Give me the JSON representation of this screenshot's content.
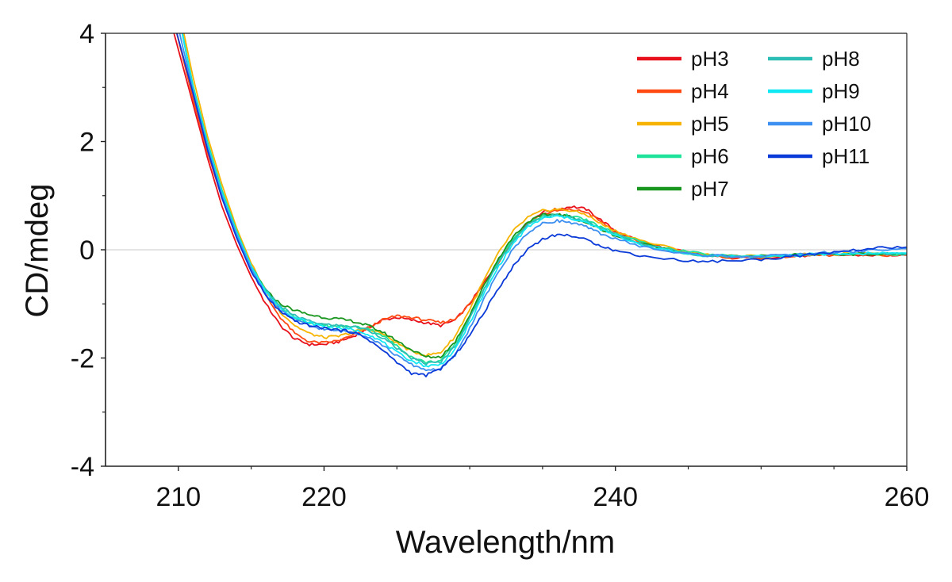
{
  "chart_data": {
    "type": "line",
    "xlabel": "Wavelength/nm",
    "ylabel": "CD/mdeg",
    "xlim": [
      205,
      260
    ],
    "ylim": [
      -4,
      4
    ],
    "xticks": [
      210,
      220,
      240,
      260
    ],
    "xticks_minor": [
      215,
      225,
      230,
      235,
      245,
      250,
      255
    ],
    "yticks": [
      -4,
      -2,
      0,
      2,
      4
    ],
    "zero_line": true,
    "grid": false,
    "legend_position": "top-right",
    "series": [
      {
        "name": "pH3",
        "color": "#e8101a",
        "x": [
          209.5,
          211,
          212,
          213,
          214,
          215,
          216,
          217,
          218,
          219,
          220,
          221,
          222,
          223,
          224,
          225,
          226,
          227,
          228,
          229,
          230,
          231,
          232,
          233,
          234,
          235,
          236,
          237,
          238,
          239,
          240,
          242,
          244,
          246,
          248,
          250,
          252,
          254,
          256,
          258,
          260
        ],
        "y": [
          4.2,
          2.7,
          1.7,
          0.8,
          0.1,
          -0.5,
          -1.0,
          -1.4,
          -1.65,
          -1.75,
          -1.75,
          -1.7,
          -1.6,
          -1.45,
          -1.3,
          -1.25,
          -1.3,
          -1.35,
          -1.4,
          -1.3,
          -1.0,
          -0.6,
          -0.2,
          0.2,
          0.5,
          0.7,
          0.75,
          0.8,
          0.75,
          0.55,
          0.35,
          0.12,
          0.0,
          -0.1,
          -0.15,
          -0.15,
          -0.12,
          -0.1,
          -0.1,
          -0.1,
          -0.1
        ]
      },
      {
        "name": "pH4",
        "color": "#ff4a14",
        "x": [
          209.8,
          211,
          212,
          213,
          214,
          215,
          216,
          217,
          218,
          219,
          220,
          221,
          222,
          223,
          224,
          225,
          226,
          227,
          228,
          229,
          230,
          231,
          232,
          233,
          234,
          235,
          236,
          237,
          238,
          239,
          240,
          242,
          244,
          246,
          248,
          250,
          252,
          254,
          256,
          258,
          260
        ],
        "y": [
          4.1,
          2.8,
          1.8,
          0.95,
          0.3,
          -0.3,
          -0.85,
          -1.25,
          -1.55,
          -1.7,
          -1.72,
          -1.68,
          -1.58,
          -1.45,
          -1.3,
          -1.22,
          -1.25,
          -1.3,
          -1.35,
          -1.28,
          -1.0,
          -0.62,
          -0.22,
          0.18,
          0.48,
          0.66,
          0.72,
          0.74,
          0.7,
          0.52,
          0.33,
          0.1,
          0.0,
          -0.1,
          -0.14,
          -0.14,
          -0.12,
          -0.1,
          -0.1,
          -0.1,
          -0.1
        ]
      },
      {
        "name": "pH5",
        "color": "#f6b400",
        "x": [
          210.3,
          211,
          212,
          213,
          214,
          215,
          216,
          217,
          218,
          219,
          220,
          221,
          222,
          223,
          224,
          225,
          226,
          227,
          228,
          229,
          230,
          231,
          232,
          233,
          234,
          235,
          236,
          237,
          238,
          239,
          240,
          242,
          244,
          246,
          248,
          250,
          252,
          254,
          256,
          258,
          260
        ],
        "y": [
          4.1,
          3.2,
          2.1,
          1.2,
          0.4,
          -0.25,
          -0.75,
          -1.15,
          -1.4,
          -1.55,
          -1.62,
          -1.6,
          -1.52,
          -1.45,
          -1.55,
          -1.72,
          -1.88,
          -1.95,
          -1.9,
          -1.6,
          -1.1,
          -0.55,
          -0.05,
          0.35,
          0.6,
          0.72,
          0.75,
          0.72,
          0.65,
          0.48,
          0.35,
          0.15,
          0.02,
          -0.08,
          -0.12,
          -0.12,
          -0.1,
          -0.08,
          -0.08,
          -0.08,
          -0.08
        ]
      },
      {
        "name": "pH6",
        "color": "#1fe39a",
        "x": [
          210.2,
          211,
          212,
          213,
          214,
          215,
          216,
          217,
          218,
          219,
          220,
          221,
          222,
          223,
          224,
          225,
          226,
          227,
          228,
          229,
          230,
          231,
          232,
          233,
          234,
          235,
          236,
          237,
          238,
          239,
          240,
          242,
          244,
          246,
          248,
          250,
          252,
          254,
          256,
          258,
          260
        ],
        "y": [
          4.1,
          3.05,
          2.0,
          1.1,
          0.35,
          -0.3,
          -0.75,
          -1.05,
          -1.25,
          -1.35,
          -1.4,
          -1.42,
          -1.42,
          -1.45,
          -1.58,
          -1.78,
          -1.98,
          -2.08,
          -2.05,
          -1.75,
          -1.25,
          -0.7,
          -0.2,
          0.2,
          0.48,
          0.62,
          0.66,
          0.62,
          0.55,
          0.42,
          0.3,
          0.12,
          0.0,
          -0.08,
          -0.12,
          -0.12,
          -0.1,
          -0.08,
          -0.08,
          -0.08,
          -0.08
        ]
      },
      {
        "name": "pH7",
        "color": "#18961e",
        "x": [
          210.2,
          211,
          212,
          213,
          214,
          215,
          216,
          217,
          218,
          219,
          220,
          221,
          222,
          223,
          224,
          225,
          226,
          227,
          228,
          229,
          230,
          231,
          232,
          233,
          234,
          235,
          236,
          237,
          238,
          239,
          240,
          242,
          244,
          246,
          248,
          250,
          252,
          254,
          256,
          258,
          260
        ],
        "y": [
          4.1,
          3.0,
          1.95,
          1.05,
          0.3,
          -0.32,
          -0.75,
          -1.0,
          -1.12,
          -1.2,
          -1.25,
          -1.28,
          -1.32,
          -1.4,
          -1.52,
          -1.68,
          -1.85,
          -1.98,
          -1.98,
          -1.7,
          -1.2,
          -0.65,
          -0.15,
          0.25,
          0.52,
          0.64,
          0.66,
          0.6,
          0.5,
          0.38,
          0.26,
          0.1,
          -0.02,
          -0.1,
          -0.12,
          -0.12,
          -0.1,
          -0.08,
          -0.08,
          -0.08,
          -0.08
        ]
      },
      {
        "name": "pH8",
        "color": "#2cbdb4",
        "x": [
          210.2,
          211,
          212,
          213,
          214,
          215,
          216,
          217,
          218,
          219,
          220,
          221,
          222,
          223,
          224,
          225,
          226,
          227,
          228,
          229,
          230,
          231,
          232,
          233,
          234,
          235,
          236,
          237,
          238,
          239,
          240,
          242,
          244,
          246,
          248,
          250,
          252,
          254,
          256,
          258,
          260
        ],
        "y": [
          4.1,
          3.0,
          1.95,
          1.05,
          0.32,
          -0.3,
          -0.75,
          -1.05,
          -1.22,
          -1.32,
          -1.38,
          -1.4,
          -1.42,
          -1.48,
          -1.62,
          -1.82,
          -2.0,
          -2.1,
          -2.08,
          -1.78,
          -1.28,
          -0.72,
          -0.22,
          0.18,
          0.46,
          0.6,
          0.64,
          0.6,
          0.52,
          0.4,
          0.28,
          0.1,
          -0.02,
          -0.1,
          -0.12,
          -0.12,
          -0.1,
          -0.08,
          -0.08,
          -0.08,
          -0.08
        ]
      },
      {
        "name": "pH9",
        "color": "#10e8f4",
        "x": [
          210.2,
          211,
          212,
          213,
          214,
          215,
          216,
          217,
          218,
          219,
          220,
          221,
          222,
          223,
          224,
          225,
          226,
          227,
          228,
          229,
          230,
          231,
          232,
          233,
          234,
          235,
          236,
          237,
          238,
          239,
          240,
          242,
          244,
          246,
          248,
          250,
          252,
          254,
          256,
          258,
          260
        ],
        "y": [
          4.1,
          3.0,
          1.95,
          1.05,
          0.32,
          -0.3,
          -0.78,
          -1.08,
          -1.25,
          -1.35,
          -1.42,
          -1.45,
          -1.48,
          -1.55,
          -1.7,
          -1.9,
          -2.05,
          -2.15,
          -2.12,
          -1.85,
          -1.35,
          -0.8,
          -0.3,
          0.12,
          0.42,
          0.58,
          0.62,
          0.58,
          0.5,
          0.38,
          0.26,
          0.08,
          -0.04,
          -0.1,
          -0.12,
          -0.12,
          -0.1,
          -0.08,
          -0.08,
          -0.06,
          -0.06
        ]
      },
      {
        "name": "pH10",
        "color": "#3d8ff0",
        "x": [
          210.0,
          211,
          212,
          213,
          214,
          215,
          216,
          217,
          218,
          219,
          220,
          221,
          222,
          223,
          224,
          225,
          226,
          227,
          228,
          229,
          230,
          231,
          232,
          233,
          234,
          235,
          236,
          237,
          238,
          239,
          240,
          242,
          244,
          246,
          248,
          250,
          252,
          254,
          256,
          258,
          260
        ],
        "y": [
          4.1,
          2.95,
          1.9,
          1.0,
          0.28,
          -0.35,
          -0.82,
          -1.12,
          -1.3,
          -1.4,
          -1.47,
          -1.5,
          -1.52,
          -1.6,
          -1.76,
          -1.96,
          -2.12,
          -2.22,
          -2.2,
          -1.95,
          -1.45,
          -0.9,
          -0.4,
          0.02,
          0.32,
          0.48,
          0.54,
          0.5,
          0.42,
          0.3,
          0.2,
          0.05,
          -0.05,
          -0.1,
          -0.12,
          -0.12,
          -0.1,
          -0.06,
          -0.04,
          0.0,
          0.02
        ]
      },
      {
        "name": "pH11",
        "color": "#0a3ad8",
        "x": [
          209.8,
          211,
          212,
          213,
          214,
          215,
          216,
          217,
          218,
          219,
          220,
          221,
          222,
          223,
          224,
          225,
          226,
          227,
          228,
          229,
          230,
          231,
          232,
          233,
          234,
          235,
          236,
          237,
          238,
          239,
          240,
          242,
          244,
          246,
          248,
          250,
          252,
          254,
          256,
          258,
          260
        ],
        "y": [
          4.1,
          2.9,
          1.85,
          0.95,
          0.22,
          -0.4,
          -0.85,
          -1.15,
          -1.32,
          -1.4,
          -1.45,
          -1.48,
          -1.52,
          -1.65,
          -1.85,
          -2.08,
          -2.28,
          -2.32,
          -2.2,
          -1.95,
          -1.58,
          -1.15,
          -0.7,
          -0.3,
          0.02,
          0.2,
          0.28,
          0.26,
          0.18,
          0.08,
          -0.02,
          -0.12,
          -0.18,
          -0.22,
          -0.2,
          -0.18,
          -0.12,
          -0.08,
          -0.02,
          0.03,
          0.05
        ]
      }
    ]
  }
}
